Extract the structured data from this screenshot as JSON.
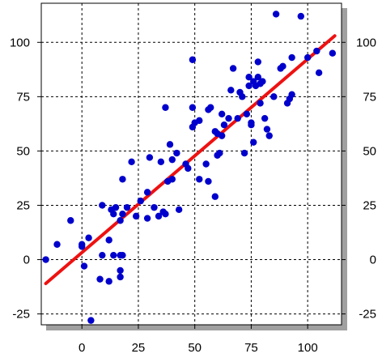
{
  "chart_data": {
    "type": "scatter",
    "title": "",
    "xlabel": "",
    "ylabel": "",
    "xlim": [
      -18,
      115
    ],
    "ylim": [
      -30,
      118
    ],
    "xticks": [
      0,
      25,
      50,
      75,
      100
    ],
    "yticks": [
      -25,
      0,
      25,
      50,
      75,
      100
    ],
    "xtick_labels": [
      "0",
      "25",
      "50",
      "75",
      "100"
    ],
    "ytick_labels_left": [
      "-25",
      "0",
      "25",
      "50",
      "75",
      "100"
    ],
    "ytick_labels_right": [
      "-25",
      "0",
      "25",
      "50",
      "75",
      "100"
    ],
    "grid": true,
    "colors": {
      "points": "#0000cc",
      "fit_line": "#ee1111",
      "grid": "#000000",
      "shadow": "#a0a0a0"
    },
    "series": [
      {
        "type": "scatter",
        "points": [
          [
            -16,
            0
          ],
          [
            -11,
            7
          ],
          [
            -5,
            18
          ],
          [
            0,
            6
          ],
          [
            0,
            7
          ],
          [
            1,
            -3
          ],
          [
            3,
            10
          ],
          [
            4,
            -28
          ],
          [
            8,
            -9
          ],
          [
            9,
            2
          ],
          [
            9,
            25
          ],
          [
            12,
            -10
          ],
          [
            12,
            9
          ],
          [
            13,
            23
          ],
          [
            14,
            21
          ],
          [
            14,
            2
          ],
          [
            15,
            24
          ],
          [
            17,
            2
          ],
          [
            17,
            -8
          ],
          [
            17,
            -5
          ],
          [
            17,
            18
          ],
          [
            18,
            21
          ],
          [
            18,
            2
          ],
          [
            18,
            37
          ],
          [
            20,
            24
          ],
          [
            22,
            45
          ],
          [
            24,
            20
          ],
          [
            26,
            27
          ],
          [
            29,
            31
          ],
          [
            29,
            19
          ],
          [
            30,
            47
          ],
          [
            32,
            24
          ],
          [
            34,
            20
          ],
          [
            35,
            45
          ],
          [
            36,
            22
          ],
          [
            37,
            70
          ],
          [
            37,
            21
          ],
          [
            38,
            36
          ],
          [
            39,
            53
          ],
          [
            40,
            37
          ],
          [
            40,
            46
          ],
          [
            42,
            49
          ],
          [
            43,
            23
          ],
          [
            46,
            44
          ],
          [
            47,
            42
          ],
          [
            49,
            92
          ],
          [
            49,
            70
          ],
          [
            49,
            61
          ],
          [
            50,
            63
          ],
          [
            52,
            37
          ],
          [
            52,
            64
          ],
          [
            55,
            44
          ],
          [
            56,
            36
          ],
          [
            56,
            69
          ],
          [
            57,
            70
          ],
          [
            59,
            29
          ],
          [
            59,
            59
          ],
          [
            60,
            58
          ],
          [
            60,
            48
          ],
          [
            61,
            49
          ],
          [
            62,
            57
          ],
          [
            62,
            67
          ],
          [
            63,
            62
          ],
          [
            65,
            65
          ],
          [
            66,
            78
          ],
          [
            67,
            88
          ],
          [
            69,
            65
          ],
          [
            70,
            77
          ],
          [
            71,
            75
          ],
          [
            72,
            49
          ],
          [
            73,
            67
          ],
          [
            74,
            80
          ],
          [
            74,
            84
          ],
          [
            75,
            62
          ],
          [
            75,
            63
          ],
          [
            76,
            54
          ],
          [
            76,
            82
          ],
          [
            77,
            80
          ],
          [
            78,
            91
          ],
          [
            78,
            84
          ],
          [
            79,
            72
          ],
          [
            79,
            81
          ],
          [
            80,
            82
          ],
          [
            81,
            65
          ],
          [
            82,
            60
          ],
          [
            83,
            57
          ],
          [
            85,
            75
          ],
          [
            86,
            113
          ],
          [
            88,
            88
          ],
          [
            89,
            89
          ],
          [
            91,
            72
          ],
          [
            92,
            74
          ],
          [
            93,
            76
          ],
          [
            93,
            93
          ],
          [
            97,
            112
          ],
          [
            100,
            93
          ],
          [
            104,
            96
          ],
          [
            105,
            86
          ],
          [
            111,
            95
          ]
        ]
      },
      {
        "type": "line",
        "x": [
          -16,
          112
        ],
        "y": [
          -11,
          103
        ]
      }
    ]
  }
}
